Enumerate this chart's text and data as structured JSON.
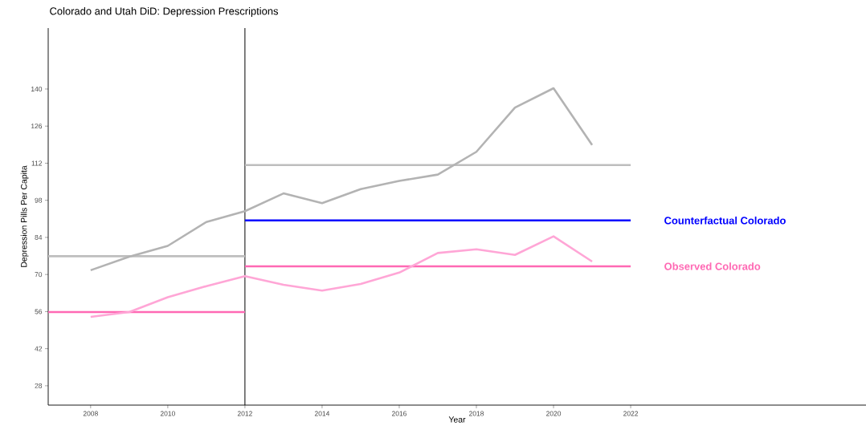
{
  "chart_data": {
    "type": "line",
    "title": "Colorado and Utah DiD: Depression Prescriptions",
    "xlabel": "Year",
    "ylabel": "Depression Pills Per Capita",
    "xlim": [
      2006.9,
      2028.1
    ],
    "ylim": [
      20.7,
      163
    ],
    "xticks": [
      2008,
      2010,
      2012,
      2014,
      2016,
      2018,
      2020,
      2022
    ],
    "yticks": [
      28,
      42,
      56,
      70,
      84,
      98,
      112,
      126,
      140
    ],
    "grid": false,
    "legend": false,
    "marker": "none",
    "line_style": "solid",
    "ref_lines": [
      {
        "axis": "x",
        "value": 2012,
        "color": "#000000"
      }
    ],
    "series": [
      {
        "color": "#bebebe",
        "x": [
          2006.9,
          2012
        ],
        "values": [
          76.9,
          76.9
        ]
      },
      {
        "color": "#bebebe",
        "x": [
          2012,
          2022
        ],
        "values": [
          111.3,
          111.3
        ]
      },
      {
        "color": "#b3b3b3",
        "x": [
          2008,
          2009,
          2010,
          2011,
          2012,
          2013,
          2014,
          2015,
          2016,
          2017,
          2018,
          2019,
          2020,
          2021
        ],
        "values": [
          71.6,
          76.7,
          80.8,
          89.8,
          93.9,
          100.6,
          96.9,
          102.2,
          105.3,
          107.7,
          116.3,
          133.0,
          140.3,
          118.9
        ]
      },
      {
        "color": "#ff69b4",
        "x": [
          2006.9,
          2012
        ],
        "values": [
          55.8,
          55.8
        ]
      },
      {
        "name": "Observed Colorado",
        "color": "#ff69b4",
        "x": [
          2012,
          2022
        ],
        "values": [
          73.1,
          73.1
        ]
      },
      {
        "color": "#ffa6d6",
        "x": [
          2008,
          2009,
          2010,
          2011,
          2012,
          2013,
          2014,
          2015,
          2016,
          2017,
          2018,
          2019,
          2020,
          2021
        ],
        "values": [
          54.0,
          55.8,
          61.4,
          65.6,
          69.4,
          66.1,
          63.9,
          66.4,
          70.7,
          78.1,
          79.5,
          77.4,
          84.4,
          74.9
        ]
      },
      {
        "name": "Counterfactual Colorado",
        "color": "#0000ff",
        "x": [
          2012,
          2022
        ],
        "values": [
          90.4,
          90.4
        ]
      }
    ]
  }
}
